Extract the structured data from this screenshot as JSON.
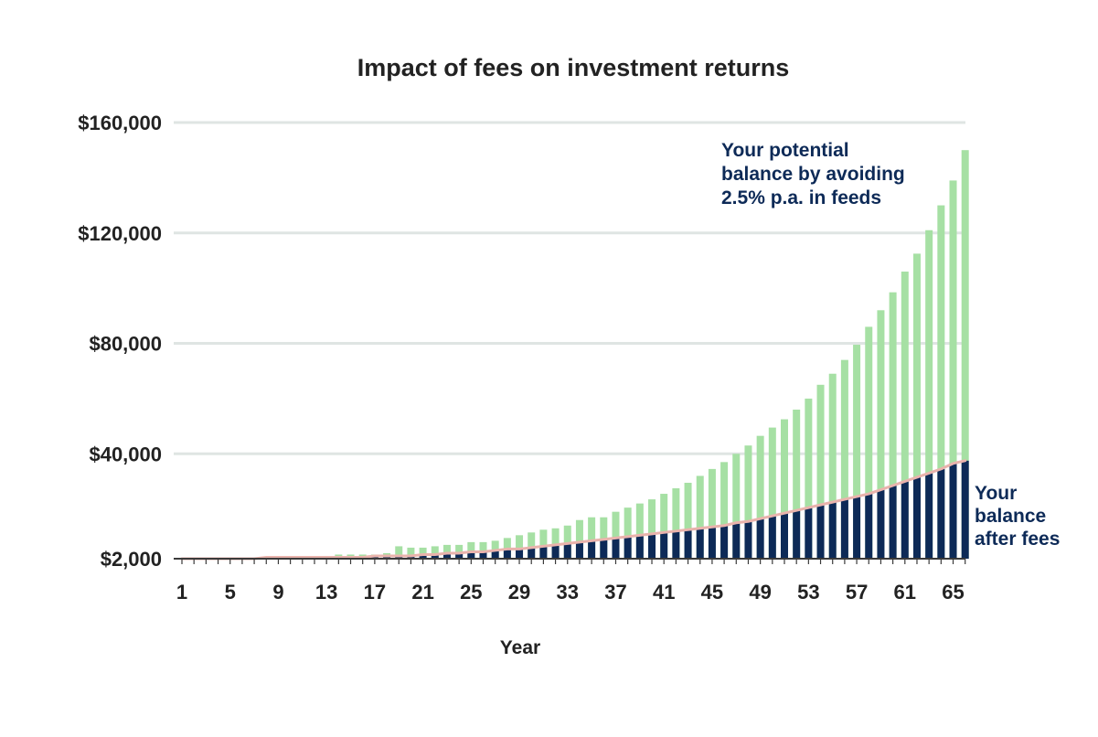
{
  "chart_data": {
    "type": "bar",
    "title": "Impact of fees on investment returns",
    "xlabel": "Year",
    "ylabel": "",
    "yticks": [
      2000,
      40000,
      80000,
      120000,
      160000
    ],
    "ytick_labels": [
      "$2,000",
      "$40,000",
      "$80,000",
      "$120,000",
      "$160,000"
    ],
    "ylim": [
      2000,
      160000
    ],
    "xtick_labels": [
      "1",
      "5",
      "9",
      "13",
      "17",
      "21",
      "25",
      "29",
      "33",
      "37",
      "41",
      "45",
      "49",
      "53",
      "57",
      "61",
      "65"
    ],
    "categories": [
      1,
      2,
      3,
      4,
      5,
      6,
      7,
      8,
      9,
      10,
      11,
      12,
      13,
      14,
      15,
      16,
      17,
      18,
      19,
      20,
      21,
      22,
      23,
      24,
      25,
      26,
      27,
      28,
      29,
      30,
      31,
      32,
      33,
      34,
      35,
      36,
      37,
      38,
      39,
      40,
      41,
      42,
      43,
      44,
      45,
      46,
      47,
      48,
      49,
      50,
      51,
      52,
      53,
      54,
      55,
      56,
      57,
      58,
      59,
      60,
      61,
      62,
      63,
      64,
      65,
      66
    ],
    "grid": true,
    "legend": "none",
    "colors": {
      "potential": "#a6e0a4",
      "after_fees": "#0d2a57",
      "trend_line": "#e9b3ac",
      "grid": "#dfe5e3",
      "axis": "#3a3a3a",
      "text": "#222222",
      "annotation": "#0d2a57"
    },
    "series": [
      {
        "key": "potential",
        "values": [
          2000,
          2000,
          2000,
          2000,
          2000,
          2000,
          2000,
          2000,
          2000,
          2000,
          2000,
          2000,
          3000,
          3500,
          3500,
          3500,
          3500,
          4000,
          6500,
          6000,
          6000,
          6500,
          7000,
          7000,
          8000,
          8000,
          8500,
          9500,
          10500,
          11500,
          12500,
          13000,
          14000,
          16000,
          17000,
          17000,
          19000,
          20500,
          22000,
          23500,
          25500,
          27500,
          29500,
          32000,
          34500,
          37000,
          40000,
          43000,
          46500,
          49500,
          52500,
          56000,
          60000,
          65000,
          69000,
          74000,
          79500,
          86000,
          92000,
          98500,
          106000,
          112500,
          121000,
          130000,
          139000,
          150000
        ]
      },
      {
        "key": "after_fees",
        "values": [
          2000,
          2000,
          2000,
          2000,
          2000,
          2000,
          2000,
          2500,
          2500,
          2500,
          2500,
          2500,
          2500,
          2500,
          2500,
          2500,
          3000,
          3000,
          3000,
          3000,
          3500,
          3500,
          4000,
          4000,
          4500,
          4500,
          5000,
          5500,
          5500,
          6000,
          6500,
          7000,
          7500,
          8000,
          8500,
          9000,
          9500,
          10000,
          10500,
          11000,
          11500,
          12000,
          12500,
          13000,
          13500,
          14000,
          15000,
          15500,
          16500,
          17500,
          18500,
          19500,
          20500,
          21500,
          22500,
          23500,
          24500,
          25500,
          27000,
          28500,
          30000,
          31500,
          33000,
          34500,
          36500,
          37500
        ]
      }
    ],
    "annotations": [
      {
        "key": "potential",
        "lines": [
          "Your potential",
          "balance by avoiding",
          "2.5% p.a. in feeds"
        ]
      },
      {
        "key": "after_fees",
        "lines": [
          "Your",
          "balance",
          "after fees"
        ]
      }
    ]
  }
}
